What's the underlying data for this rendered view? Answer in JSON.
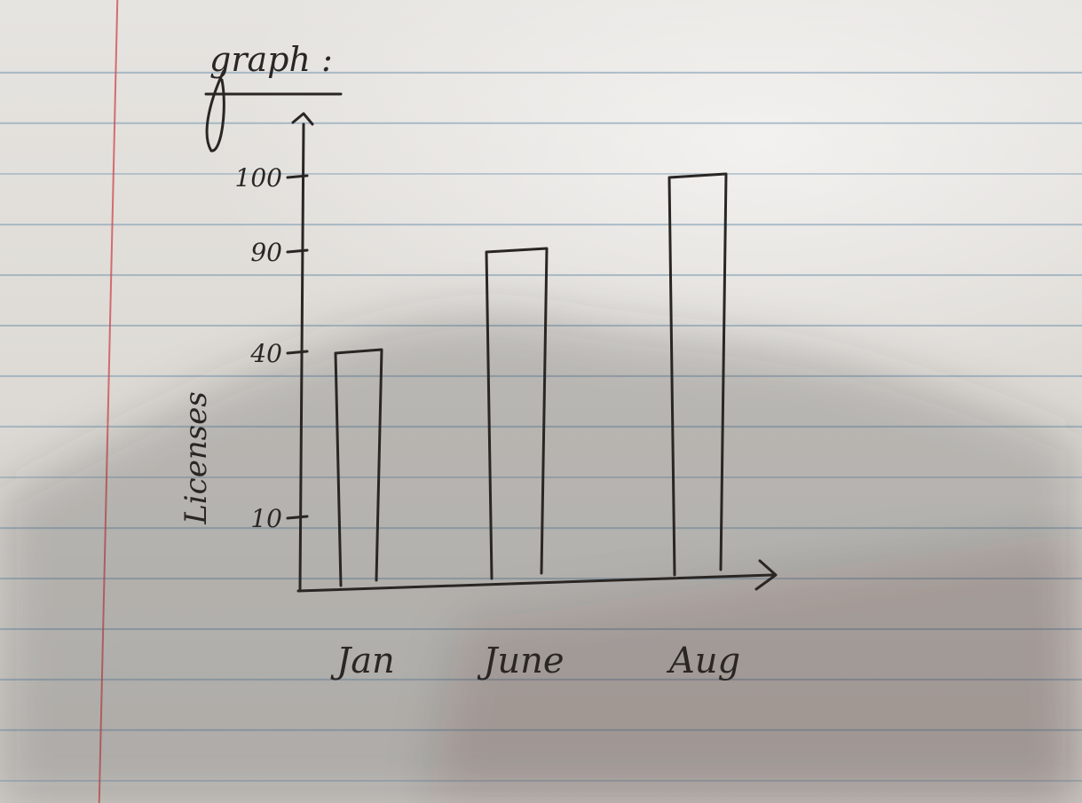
{
  "page_title": "graph :",
  "chart_data": {
    "type": "bar",
    "title": "",
    "xlabel": "",
    "ylabel": "Licenses",
    "categories": [
      "Jan",
      "June",
      "Aug"
    ],
    "values": [
      40,
      90,
      100
    ],
    "y_ticks": [
      10,
      40,
      90,
      100
    ],
    "ylim": [
      0,
      100
    ],
    "grid": false,
    "legend": "none",
    "colors": {
      "ink": "#2a2624",
      "paper": "#e4e1dc",
      "rule": "#7896af",
      "margin": "#cd464b"
    }
  }
}
